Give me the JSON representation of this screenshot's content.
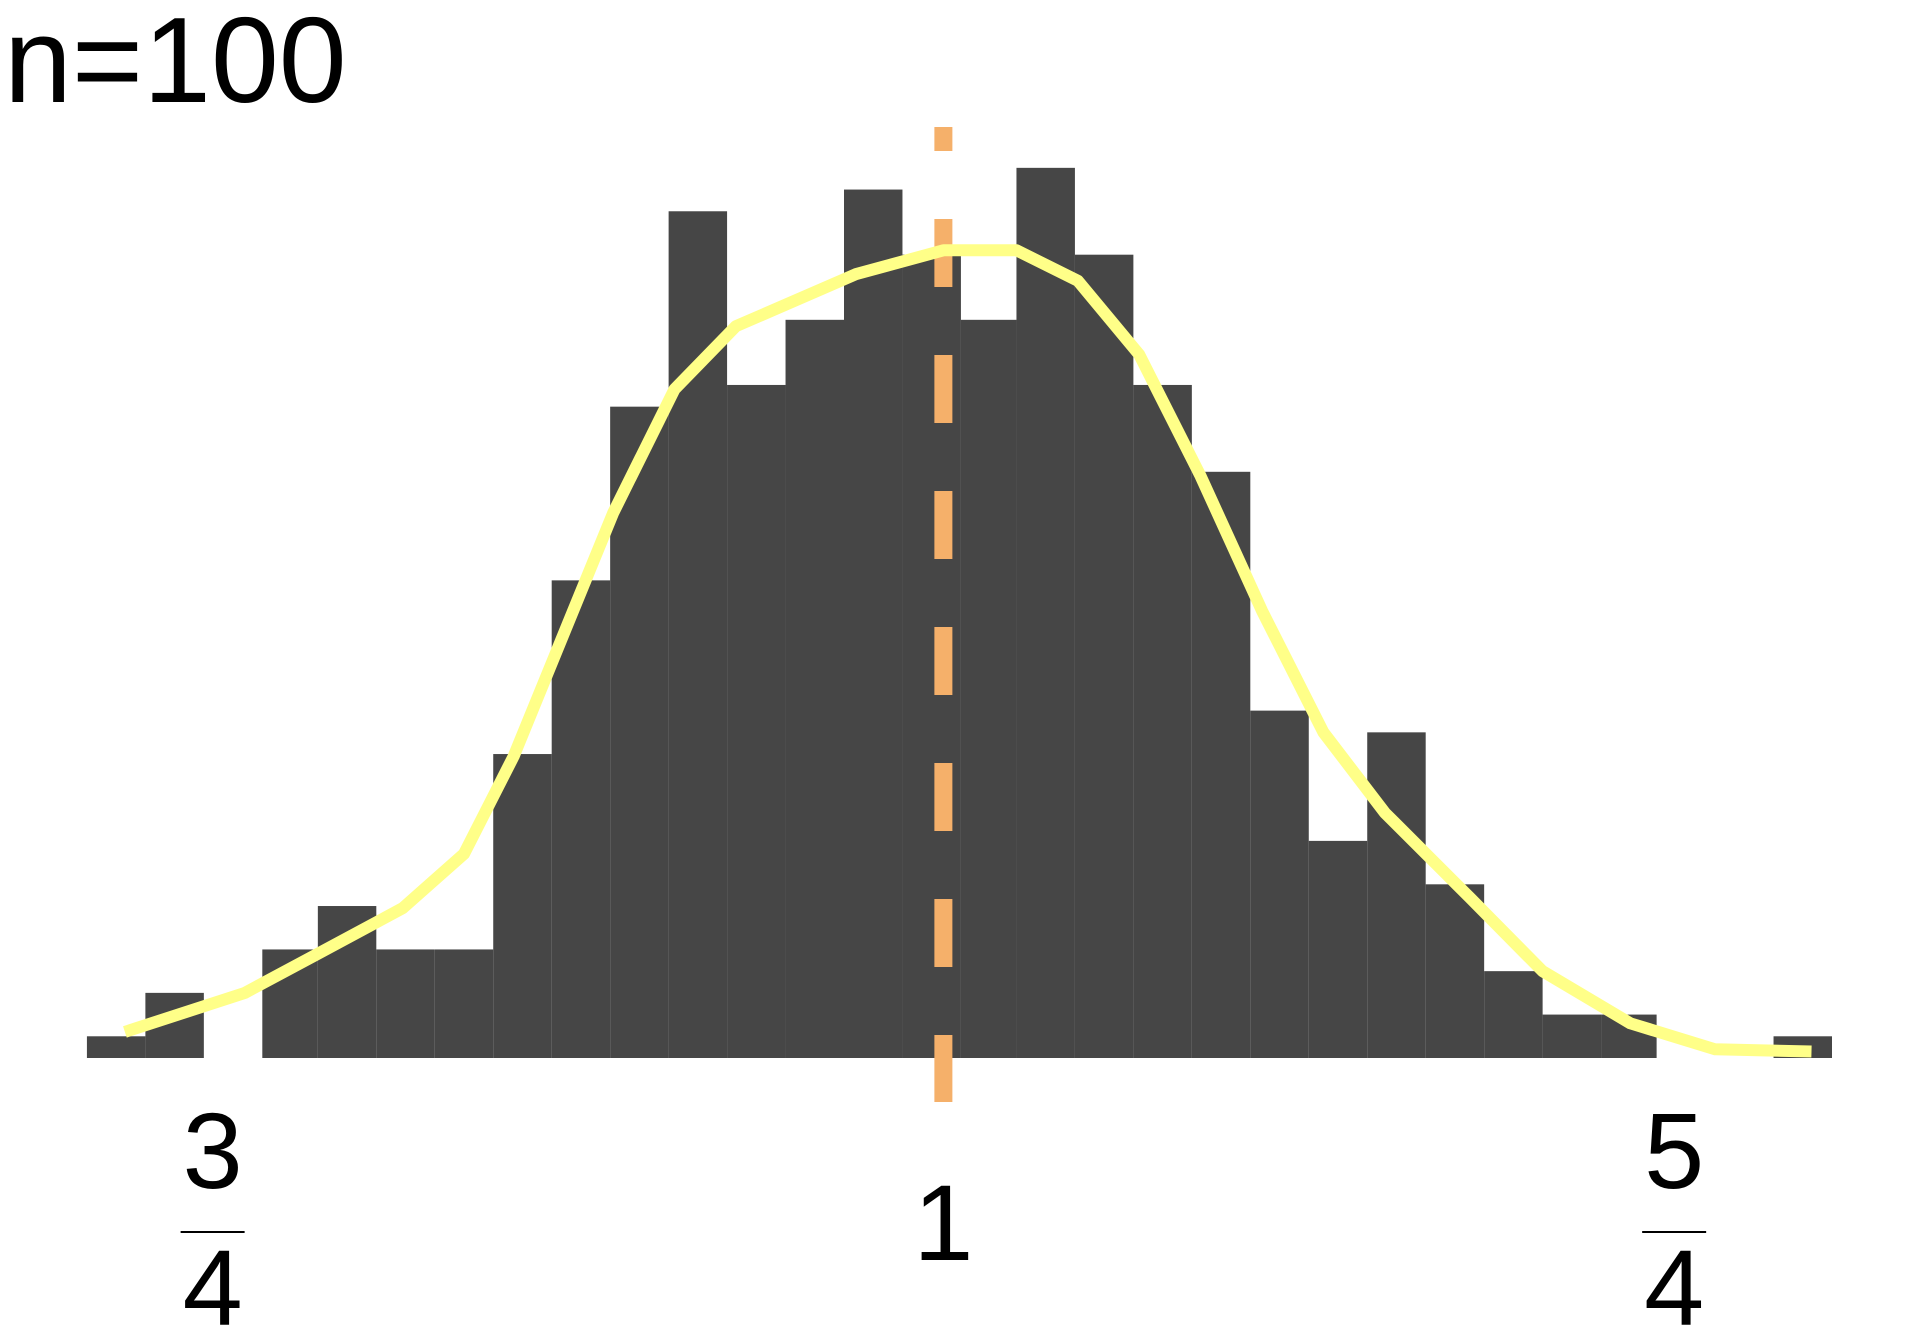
{
  "chart_data": {
    "type": "histogram",
    "title": "n=100",
    "bins": [
      0.707,
      0.727,
      0.747,
      0.767,
      0.786,
      0.806,
      0.826,
      0.846,
      0.866,
      0.886,
      0.906,
      0.926,
      0.946,
      0.966,
      0.986,
      1.006,
      1.025,
      1.045,
      1.065,
      1.085,
      1.105,
      1.125,
      1.145,
      1.165,
      1.185,
      1.205,
      1.225,
      1.244,
      1.264,
      1.284,
      1.304
    ],
    "values": [
      1,
      3,
      0,
      5,
      7,
      5,
      5,
      14,
      22,
      30,
      39,
      31,
      34,
      40,
      37,
      34,
      41,
      37,
      31,
      27,
      16,
      10,
      15,
      8,
      4,
      2,
      2,
      0,
      0,
      1
    ],
    "color": "#464646",
    "density_curve": {
      "color": "#ffff88",
      "x": [
        0.72,
        0.761,
        0.786,
        0.815,
        0.836,
        0.853,
        0.87,
        0.887,
        0.908,
        0.929,
        0.97,
        1.0,
        1.025,
        1.046,
        1.067,
        1.088,
        1.109,
        1.13,
        1.151,
        1.18,
        1.205,
        1.235,
        1.264,
        1.297
      ],
      "values": [
        1.2,
        3.0,
        4.8,
        6.9,
        9.4,
        13.9,
        19.5,
        25.1,
        30.8,
        33.7,
        36.1,
        37.2,
        37.2,
        35.8,
        32.4,
        26.8,
        20.6,
        15.0,
        11.3,
        7.4,
        4.0,
        1.6,
        0.4,
        0.3
      ]
    },
    "reference_line": {
      "x": 1,
      "color": "#f5b06a",
      "style": "dashed"
    },
    "xlim": [
      0.68,
      1.33
    ],
    "ylim": [
      0,
      45
    ],
    "xticks": [
      {
        "value": 0.75,
        "numerator": "3",
        "denominator": "4"
      },
      1,
      {
        "value": 1.25,
        "numerator": "5",
        "denominator": "4"
      }
    ],
    "grid": false
  }
}
